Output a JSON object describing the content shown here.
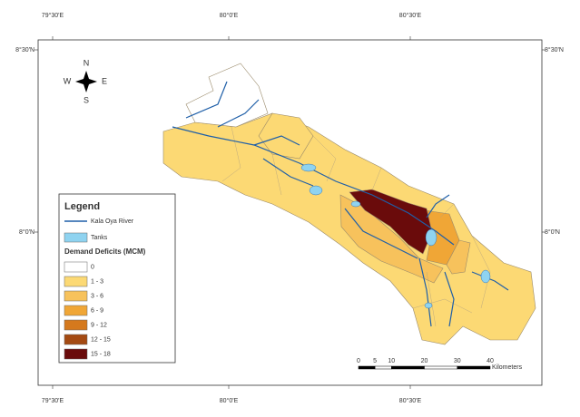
{
  "frame": {
    "top_labels": [
      "79°30'E",
      "80°0'E",
      "80°30'E"
    ],
    "bottom_labels": [
      "79°30'E",
      "80°0'E",
      "80°30'E"
    ],
    "left_labels": [
      "8°30'N",
      "8°0'N"
    ],
    "right_labels": [
      "8°30'N",
      "8°0'N"
    ]
  },
  "compass": {
    "north": "N",
    "east": "E",
    "south": "S",
    "west": "W"
  },
  "legend": {
    "title": "Legend",
    "items": [
      {
        "label": "Kala Oya River",
        "color": "#1f5fa8"
      },
      {
        "label": "Tanks",
        "color": "#8fd3f0"
      }
    ],
    "subtitle": "Demand Deficits (MCM)",
    "classes": [
      {
        "label": "0",
        "color": "#ffffff"
      },
      {
        "label": "1 - 3",
        "color": "#fcd974"
      },
      {
        "label": "3 - 6",
        "color": "#f7c25c"
      },
      {
        "label": "6 - 9",
        "color": "#f0a636"
      },
      {
        "label": "9 - 12",
        "color": "#d5791d"
      },
      {
        "label": "12 - 15",
        "color": "#a44a12"
      },
      {
        "label": "15 - 18",
        "color": "#6a0b0b"
      }
    ]
  },
  "scale_bar": {
    "ticks": [
      0,
      5,
      10,
      20,
      30,
      40
    ],
    "unit": "Kilometers"
  }
}
